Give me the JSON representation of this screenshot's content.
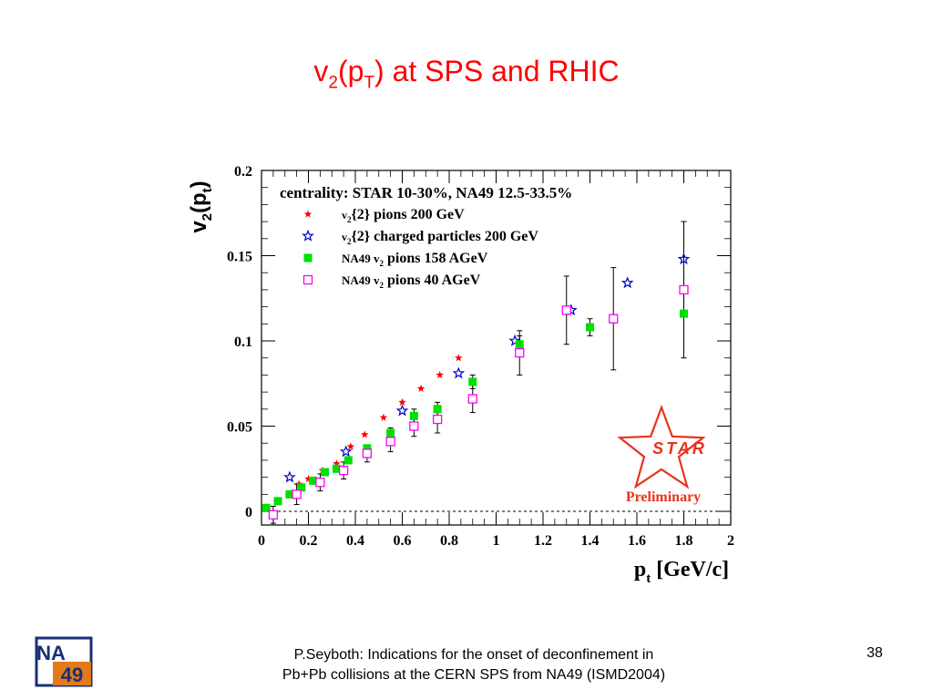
{
  "slide": {
    "title_main": "v",
    "title_sub1": "2",
    "title_mid": "(p",
    "title_sub2": "T",
    "title_end": ") at SPS and RHIC",
    "footer_line1": "P.Seyboth: Indications for the onset of deconfinement in",
    "footer_line2": "Pb+Pb collisions at the CERN SPS from NA49   (ISMD2004)",
    "page_number": "38"
  },
  "logo": {
    "top": "NA",
    "bottom": "49"
  },
  "star_logo": {
    "text": "STAR",
    "label": "Preliminary",
    "color": "#e8321e"
  },
  "chart_data": {
    "type": "scatter",
    "xlabel": "p",
    "xlabel_sub": "t",
    "xlabel_unit": " [GeV/c]",
    "ylabel": "v",
    "ylabel_sub": "2",
    "ylabel_paren": "(p",
    "ylabel_sub2": "t",
    "ylabel_close": ")",
    "xlim": [
      0,
      2
    ],
    "ylim": [
      -0.008,
      0.2
    ],
    "xticks": [
      0,
      0.2,
      0.4,
      0.6,
      0.8,
      1,
      1.2,
      1.4,
      1.6,
      1.8,
      2
    ],
    "xtick_labels": [
      "0",
      "0.2",
      "0.4",
      "0.6",
      "0.8",
      "1",
      "1.2",
      "1.4",
      "1.6",
      "1.8",
      "2"
    ],
    "yticks": [
      0,
      0.05,
      0.1,
      0.15,
      0.2
    ],
    "ytick_labels": [
      "0",
      "0.05",
      "0.1",
      "0.15",
      "0.2"
    ],
    "zero_line": 0,
    "legend_header": "centrality: STAR 10-30%, NA49 12.5-33.5%",
    "series": [
      {
        "name": "v2{2} pions 200 GeV",
        "legend_pre": "v",
        "legend_sub": "2",
        "legend_post": "{2} pions 200 GeV",
        "marker": "filled-star",
        "color": "#ff0000",
        "x": [
          0.16,
          0.2,
          0.26,
          0.32,
          0.38,
          0.44,
          0.52,
          0.6,
          0.68,
          0.76,
          0.84
        ],
        "y": [
          0.016,
          0.019,
          0.024,
          0.028,
          0.038,
          0.045,
          0.055,
          0.064,
          0.072,
          0.08,
          0.09
        ]
      },
      {
        "name": "v2{2} charged particles 200 GeV",
        "legend_pre": "v",
        "legend_sub": "2",
        "legend_post": "{2} charged particles 200 GeV",
        "marker": "open-star",
        "color": "#0000cc",
        "x": [
          0.12,
          0.36,
          0.6,
          0.84,
          1.08,
          1.32,
          1.56,
          1.8
        ],
        "y": [
          0.02,
          0.035,
          0.059,
          0.081,
          0.1,
          0.118,
          0.134,
          0.148
        ]
      },
      {
        "name": "NA49 v2 pions 158 AGeV",
        "legend_pre": "NA49 v",
        "legend_sub": "2",
        "legend_post": " pions 158 AGeV",
        "marker": "filled-square",
        "color": "#00e000",
        "x": [
          0.02,
          0.07,
          0.12,
          0.17,
          0.22,
          0.27,
          0.32,
          0.37,
          0.45,
          0.55,
          0.65,
          0.75,
          0.9,
          1.1,
          1.4,
          1.8
        ],
        "y": [
          0.002,
          0.006,
          0.01,
          0.014,
          0.018,
          0.023,
          0.025,
          0.03,
          0.037,
          0.046,
          0.056,
          0.06,
          0.076,
          0.098,
          0.108,
          0.116
        ],
        "err": [
          0,
          0,
          0,
          0,
          0,
          0,
          0,
          0,
          0.002,
          0.003,
          0.004,
          0.004,
          0.004,
          0.005,
          0.005,
          0
        ]
      },
      {
        "name": "NA49 v2 pions 40 AGeV",
        "legend_pre": "NA49 v",
        "legend_sub": "2",
        "legend_post": " pions 40 AGeV",
        "marker": "open-square",
        "color": "#ff00ff",
        "x": [
          0.05,
          0.15,
          0.25,
          0.35,
          0.45,
          0.55,
          0.65,
          0.75,
          0.9,
          1.1,
          1.3,
          1.5,
          1.8
        ],
        "y": [
          -0.002,
          0.01,
          0.017,
          0.024,
          0.034,
          0.041,
          0.05,
          0.054,
          0.066,
          0.093,
          0.118,
          0.113,
          0.13
        ],
        "err": [
          0.005,
          0.006,
          0.005,
          0.005,
          0.005,
          0.006,
          0.006,
          0.008,
          0.008,
          0.013,
          0.02,
          0.03,
          0.04
        ]
      }
    ]
  }
}
